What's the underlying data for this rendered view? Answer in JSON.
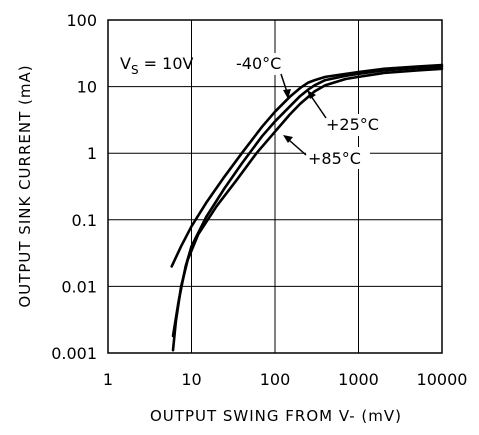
{
  "chart_data": {
    "type": "line",
    "title": "",
    "xlabel": "OUTPUT SWING FROM V- (mV)",
    "ylabel": "OUTPUT SINK CURRENT (mA)",
    "xscale": "log",
    "yscale": "log",
    "xlim": [
      1,
      10000
    ],
    "ylim": [
      0.001,
      100
    ],
    "grid": true,
    "x_ticks": [
      1,
      10,
      100,
      1000,
      10000
    ],
    "x_tick_labels": [
      "1",
      "10",
      "100",
      "1000",
      "10000"
    ],
    "y_ticks": [
      0.001,
      0.01,
      0.1,
      1,
      10,
      100
    ],
    "y_tick_labels": [
      "0.001",
      "0.01",
      "0.1",
      "1",
      "10",
      "100"
    ],
    "condition": {
      "prefix": "V",
      "subscript": "S",
      "text": " = 10V"
    },
    "series": [
      {
        "name": "-40°C",
        "x": [
          5.8,
          7.5,
          10,
          15,
          25,
          40,
          70,
          100,
          150,
          200,
          250,
          300,
          400,
          700,
          1000,
          2000,
          5000,
          10000
        ],
        "y": [
          0.02,
          0.04,
          0.08,
          0.18,
          0.45,
          1.0,
          2.5,
          4.2,
          7.0,
          9.5,
          11.5,
          12.5,
          14,
          15.5,
          16.5,
          18.5,
          20,
          21
        ]
      },
      {
        "name": "+25°C",
        "x": [
          6.0,
          7.0,
          8.5,
          10,
          15,
          25,
          40,
          70,
          100,
          150,
          200,
          250,
          300,
          400,
          700,
          1000,
          2000,
          5000,
          10000
        ],
        "y": [
          0.0018,
          0.006,
          0.02,
          0.04,
          0.11,
          0.3,
          0.7,
          1.8,
          3.0,
          5.0,
          7.2,
          9.0,
          10.5,
          12.5,
          14.5,
          15.5,
          17.5,
          19,
          20
        ]
      },
      {
        "name": "+85°C",
        "x": [
          6.0,
          6.5,
          7.5,
          9,
          12,
          20,
          35,
          60,
          100,
          150,
          200,
          250,
          300,
          400,
          700,
          1000,
          2000,
          5000,
          10000
        ],
        "y": [
          0.0011,
          0.003,
          0.01,
          0.025,
          0.06,
          0.16,
          0.4,
          1.0,
          2.1,
          3.8,
          5.5,
          7.0,
          8.5,
          10.5,
          13,
          14,
          16,
          17.5,
          18.5
        ]
      }
    ]
  },
  "annotations": [
    {
      "text": "-40°C",
      "x": 1.0,
      "y": 1.0
    },
    {
      "text": "+25°C",
      "x": 1.0,
      "y": 1.0
    },
    {
      "text": "+85°C",
      "x": 1.0,
      "y": 1.0
    }
  ]
}
